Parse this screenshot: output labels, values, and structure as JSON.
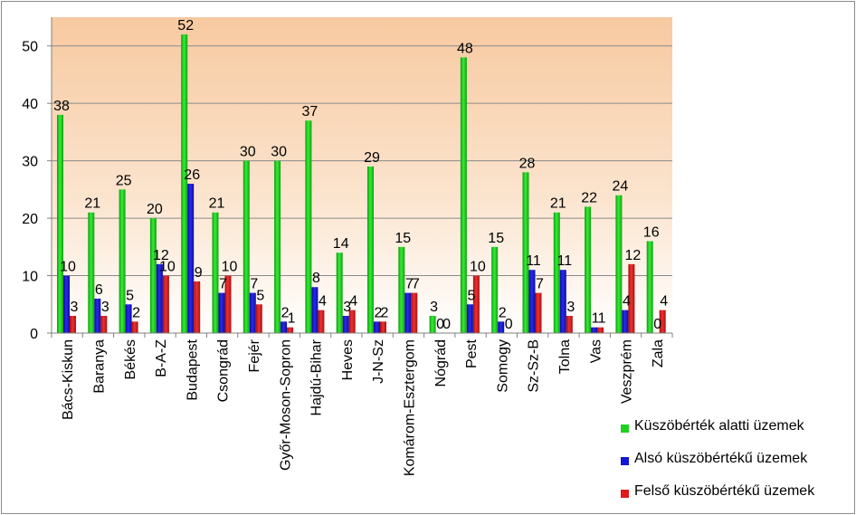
{
  "chart_data": {
    "type": "bar",
    "title": "",
    "xlabel": "",
    "ylabel": "",
    "ylim": [
      0,
      55
    ],
    "yticks": [
      0,
      10,
      20,
      30,
      40,
      50
    ],
    "grid": true,
    "legend_position": "bottom-right",
    "categories": [
      "Bács-Kiskun",
      "Baranya",
      "Békés",
      "B-A-Z",
      "Budapest",
      "Csongrád",
      "Fejér",
      "Győr-Moson-Sopron",
      "Hajdú-Bihar",
      "Heves",
      "J-N-Sz",
      "Komárom-Esztergom",
      "Nógrád",
      "Pest",
      "Somogy",
      "Sz-Sz-B",
      "Tolna",
      "Vas",
      "Veszprém",
      "Zala"
    ],
    "series": [
      {
        "name": "Küszöbérték alatti üzemek",
        "color": "#1fd11f",
        "values": [
          38,
          21,
          25,
          20,
          52,
          21,
          30,
          30,
          37,
          14,
          29,
          15,
          3,
          48,
          15,
          28,
          21,
          22,
          24,
          16
        ]
      },
      {
        "name": "Alsó küszöbértékű üzemek",
        "color": "#1414d6",
        "values": [
          10,
          6,
          5,
          12,
          26,
          7,
          7,
          2,
          8,
          3,
          2,
          7,
          0,
          5,
          2,
          11,
          11,
          1,
          4,
          0
        ]
      },
      {
        "name": "Felső küszöbértékű üzemek",
        "color": "#e01a1a",
        "values": [
          3,
          3,
          2,
          10,
          9,
          10,
          5,
          1,
          4,
          4,
          2,
          7,
          0,
          10,
          0,
          7,
          3,
          1,
          12,
          4
        ]
      }
    ]
  }
}
